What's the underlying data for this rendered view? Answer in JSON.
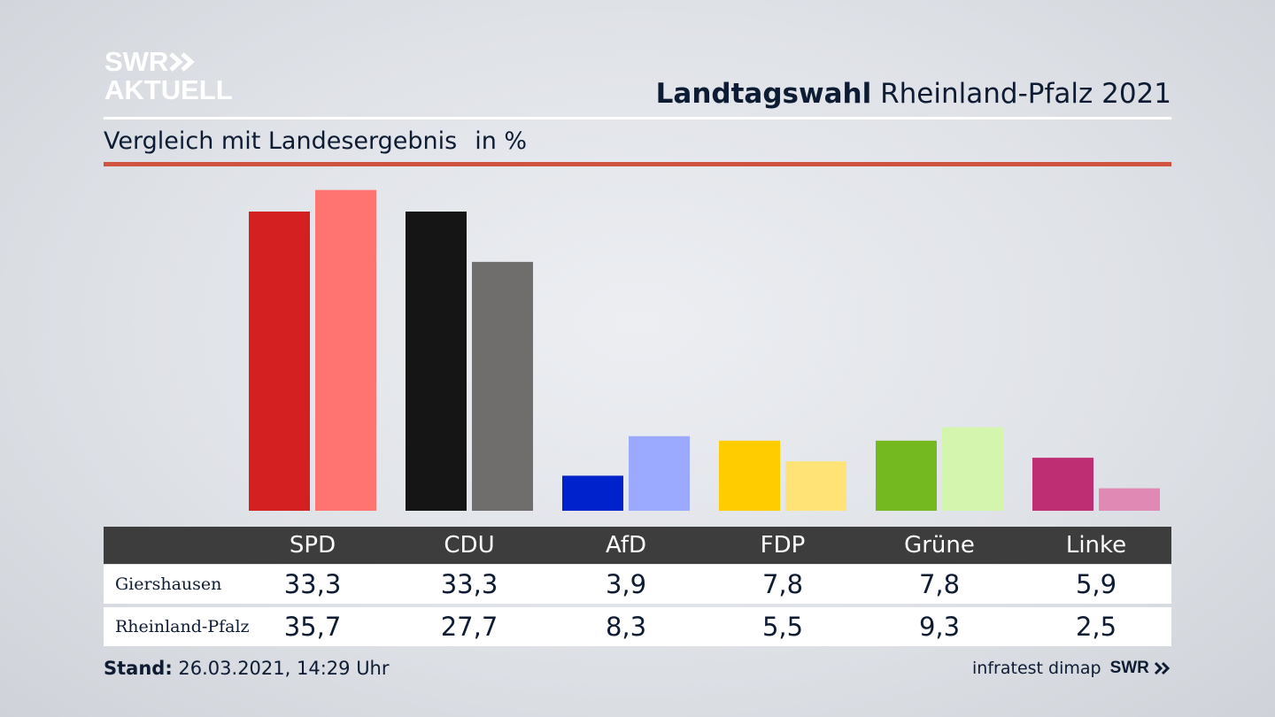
{
  "brand": {
    "logo_line1": "SWR",
    "logo_line2": "AKTUELL",
    "logo_color": "#ffffff"
  },
  "header": {
    "title_bold": "Landtagswahl",
    "title_rest": "Rheinland-Pfalz 2021",
    "subtitle": "Vergleich mit Landesergebnis",
    "unit": "in %",
    "accent_color": "#d0533f"
  },
  "chart_data": {
    "type": "bar",
    "categories": [
      "SPD",
      "CDU",
      "AfD",
      "FDP",
      "Grüne",
      "Linke"
    ],
    "series": [
      {
        "name": "Giershausen",
        "values": [
          33.3,
          33.3,
          3.9,
          7.8,
          7.8,
          5.9
        ],
        "display": [
          "33,3",
          "33,3",
          "3,9",
          "7,8",
          "7,8",
          "5,9"
        ],
        "colors": [
          "#d42020",
          "#151515",
          "#0022cc",
          "#ffcc00",
          "#74b91f",
          "#bd2f72"
        ]
      },
      {
        "name": "Rheinland-Pfalz",
        "values": [
          35.7,
          27.7,
          8.3,
          5.5,
          9.3,
          2.5
        ],
        "display": [
          "35,7",
          "27,7",
          "8,3",
          "5,5",
          "9,3",
          "2,5"
        ],
        "colors": [
          "#ff7470",
          "#6f6e6c",
          "#9ba9ff",
          "#ffe377",
          "#d4f5ad",
          "#e089b5"
        ]
      }
    ],
    "title": "Landtagswahl Rheinland-Pfalz 2021",
    "ylim": [
      0,
      40
    ],
    "grid": false,
    "legend": "table below"
  },
  "table": {
    "header_bg": "#3d3d3d"
  },
  "footer": {
    "stand_label": "Stand:",
    "stand_value": "26.03.2021, 14:29 Uhr",
    "source": "infratest dimap",
    "source_logo": "SWR"
  }
}
